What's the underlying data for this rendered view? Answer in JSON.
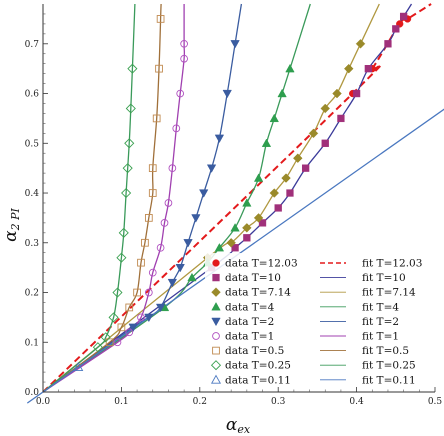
{
  "chart_data": {
    "type": "scatter",
    "xlabel": "α",
    "xlabel_sub": "ex",
    "ylabel": "α",
    "ylabel_sub": "2 PI",
    "xlim": [
      0,
      0.5
    ],
    "ylim": [
      0,
      0.78
    ],
    "x_ticks": [
      "0.0",
      "0.1",
      "0.2",
      "0.3",
      "0.4",
      "0.5"
    ],
    "y_ticks": [
      "0.0",
      "0.1",
      "0.2",
      "0.3",
      "0.4",
      "0.5",
      "0.6",
      "0.7"
    ],
    "grid": false,
    "legend_position": "bottom-right",
    "series": [
      {
        "name": "data T=12.03",
        "fit_name": "fit T=12.03",
        "marker": "filled-circle",
        "color": "#e31a1c",
        "fit_color": "#e31a1c",
        "fit_dashed": true,
        "x": [
          0.395,
          0.42,
          0.455,
          0.465
        ],
        "y": [
          0.6,
          0.65,
          0.74,
          0.75
        ]
      },
      {
        "name": "data T=10",
        "fit_name": "fit T=10",
        "marker": "filled-square",
        "color": "#a0307a",
        "fit_color": "#3b3b9a",
        "fit_dashed": false,
        "x": [
          0.215,
          0.245,
          0.26,
          0.28,
          0.3,
          0.315,
          0.335,
          0.36,
          0.38,
          0.4,
          0.415,
          0.44,
          0.45,
          0.46
        ],
        "y": [
          0.25,
          0.29,
          0.31,
          0.34,
          0.37,
          0.4,
          0.45,
          0.5,
          0.55,
          0.6,
          0.65,
          0.7,
          0.73,
          0.755
        ]
      },
      {
        "name": "data T=7.14",
        "fit_name": "fit T=7.14",
        "marker": "filled-diamond",
        "color": "#9a8a2a",
        "fit_color": "#b09840",
        "fit_dashed": false,
        "x": [
          0.21,
          0.24,
          0.26,
          0.275,
          0.295,
          0.31,
          0.325,
          0.345,
          0.36,
          0.375,
          0.39,
          0.405
        ],
        "y": [
          0.27,
          0.3,
          0.33,
          0.35,
          0.4,
          0.43,
          0.47,
          0.52,
          0.57,
          0.6,
          0.65,
          0.7
        ]
      },
      {
        "name": "data T=4",
        "fit_name": "fit T=4",
        "marker": "filled-triangle-up",
        "color": "#2e9e4e",
        "fit_color": "#3a9a5a",
        "fit_dashed": false,
        "x": [
          0.155,
          0.19,
          0.21,
          0.225,
          0.245,
          0.26,
          0.275,
          0.285,
          0.295,
          0.305,
          0.315
        ],
        "y": [
          0.17,
          0.23,
          0.26,
          0.29,
          0.33,
          0.38,
          0.43,
          0.5,
          0.55,
          0.6,
          0.65
        ]
      },
      {
        "name": "data T=2",
        "fit_name": "fit T=2",
        "marker": "filled-triangle-down",
        "color": "#3a5ca0",
        "fit_color": "#3a5ca0",
        "fit_dashed": false,
        "x": [
          0.115,
          0.135,
          0.15,
          0.165,
          0.175,
          0.185,
          0.195,
          0.205,
          0.215,
          0.225,
          0.235,
          0.245
        ],
        "y": [
          0.13,
          0.15,
          0.17,
          0.22,
          0.25,
          0.3,
          0.35,
          0.4,
          0.45,
          0.51,
          0.6,
          0.7
        ]
      },
      {
        "name": "data T=1",
        "fit_name": "fit T=1",
        "marker": "open-circle",
        "color": "#b050c0",
        "fit_color": "#a040b0",
        "fit_dashed": false,
        "x": [
          0.095,
          0.11,
          0.125,
          0.135,
          0.14,
          0.15,
          0.155,
          0.16,
          0.165,
          0.17,
          0.175,
          0.18,
          0.18
        ],
        "y": [
          0.1,
          0.12,
          0.15,
          0.2,
          0.24,
          0.29,
          0.34,
          0.38,
          0.45,
          0.53,
          0.6,
          0.67,
          0.7
        ]
      },
      {
        "name": "data T=0.5",
        "fit_name": "fit T=0.5",
        "marker": "open-square",
        "color": "#c08a50",
        "fit_color": "#a0703a",
        "fit_dashed": false,
        "x": [
          0.085,
          0.1,
          0.11,
          0.12,
          0.125,
          0.13,
          0.135,
          0.14,
          0.14,
          0.145,
          0.148,
          0.15
        ],
        "y": [
          0.1,
          0.13,
          0.17,
          0.2,
          0.26,
          0.3,
          0.35,
          0.4,
          0.45,
          0.55,
          0.65,
          0.75
        ]
      },
      {
        "name": "data T=0.25",
        "fit_name": "fit T=0.25",
        "marker": "open-diamond",
        "color": "#3aa050",
        "fit_color": "#3a9a5a",
        "fit_dashed": false,
        "x": [
          0.07,
          0.08,
          0.09,
          0.095,
          0.1,
          0.103,
          0.106,
          0.108,
          0.11,
          0.112,
          0.114
        ],
        "y": [
          0.09,
          0.11,
          0.15,
          0.2,
          0.27,
          0.32,
          0.4,
          0.45,
          0.5,
          0.57,
          0.65
        ]
      },
      {
        "name": "data T=0.11",
        "fit_name": "fit T=0.11",
        "marker": "open-triangle-up",
        "color": "#4a78c0",
        "fit_color": "#4a78c0",
        "fit_dashed": false,
        "x": [
          0.045
        ],
        "y": [
          0.05
        ]
      }
    ]
  }
}
